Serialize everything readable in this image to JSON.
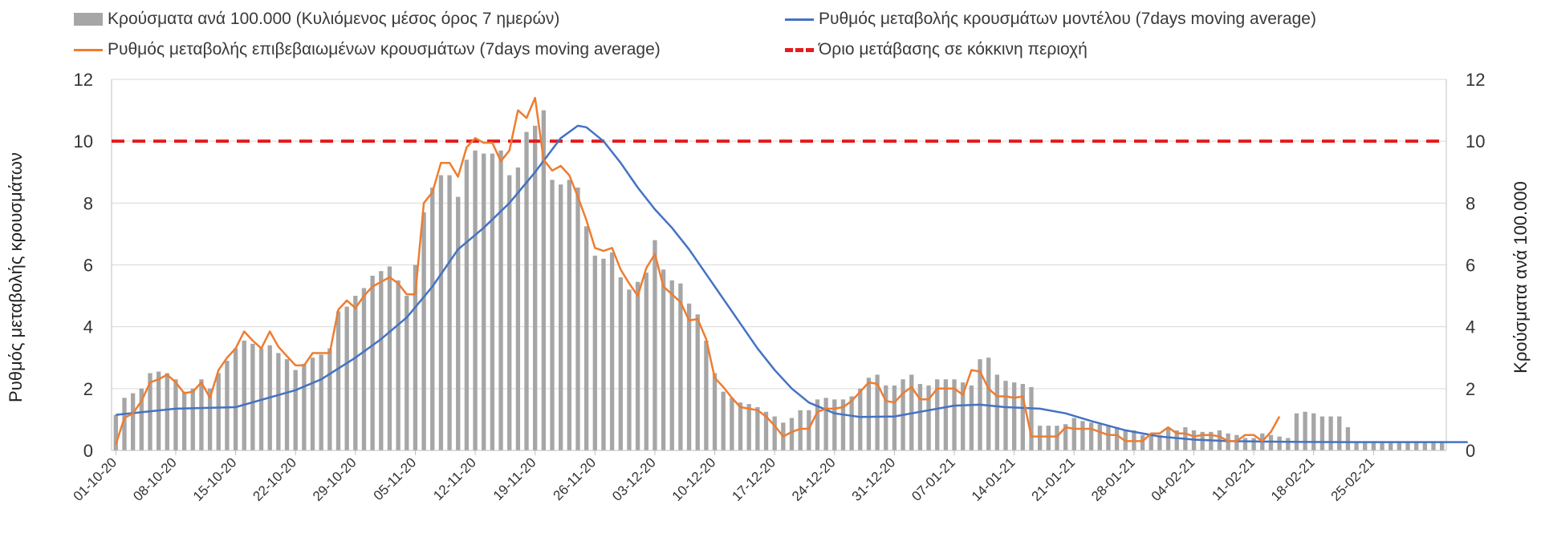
{
  "chart_data": {
    "type": "bar",
    "legend": {
      "bars": "Κρούσματα ανά 100.000 (Κυλιόμενος μέσος όρος 7 ημερών)",
      "model": "Ρυθμός μεταβολής κρουσμάτων μοντέλου (7days moving average)",
      "confirmed": "Ρυθμός μεταβολής επιβεβαιωμένων κρουσμάτων (7days moving average)",
      "threshold": "Όριο μετάβασης σε κόκκινη περιοχή"
    },
    "ylabel_left": "Ρυθμός μεταβολής κρουσμάτων",
    "ylabel_right": "Κρούσματα ανά 100.000",
    "ylim": [
      0,
      12
    ],
    "yticks": [
      "0",
      "2",
      "4",
      "6",
      "8",
      "10",
      "12"
    ],
    "threshold": 10,
    "xtick_labels": [
      "01-10-20",
      "08-10-20",
      "15-10-20",
      "22-10-20",
      "29-10-20",
      "05-11-20",
      "12-11-20",
      "19-11-20",
      "26-11-20",
      "03-12-20",
      "10-12-20",
      "17-12-20",
      "24-12-20",
      "31-12-20",
      "07-01-21",
      "14-01-21",
      "21-01-21",
      "28-01-21",
      "04-02-21",
      "11-02-21",
      "18-02-21",
      "25-02-21"
    ],
    "bars": [
      1.15,
      1.7,
      1.85,
      2.0,
      2.5,
      2.55,
      2.5,
      2.3,
      1.9,
      2.0,
      2.3,
      2.0,
      2.5,
      2.9,
      3.3,
      3.55,
      3.45,
      3.3,
      3.4,
      3.15,
      2.95,
      2.6,
      2.8,
      3.0,
      3.1,
      3.3,
      4.5,
      4.65,
      5.0,
      5.25,
      5.65,
      5.8,
      5.95,
      5.5,
      5.0,
      6.0,
      7.7,
      8.5,
      8.9,
      8.9,
      8.2,
      9.4,
      9.7,
      9.6,
      9.6,
      9.7,
      8.9,
      9.15,
      10.3,
      10.5,
      11.0,
      8.75,
      8.6,
      8.75,
      8.5,
      7.25,
      6.3,
      6.2,
      6.4,
      5.6,
      5.2,
      5.45,
      5.75,
      6.8,
      5.85,
      5.5,
      5.4,
      4.75,
      4.4,
      3.55,
      2.5,
      1.9,
      1.7,
      1.55,
      1.5,
      1.4,
      1.25,
      1.1,
      0.9,
      1.05,
      1.3,
      1.3,
      1.65,
      1.7,
      1.65,
      1.65,
      1.75,
      2.0,
      2.35,
      2.45,
      2.1,
      2.1,
      2.3,
      2.45,
      2.15,
      2.1,
      2.3,
      2.3,
      2.3,
      2.2,
      2.1,
      2.95,
      3.0,
      2.45,
      2.25,
      2.2,
      2.15,
      2.05,
      0.8,
      0.8,
      0.8,
      0.85,
      1.05,
      0.95,
      0.9,
      0.85,
      0.8,
      0.75,
      0.65,
      0.65,
      0.5,
      0.5,
      0.5,
      0.7,
      0.65,
      0.75,
      0.65,
      0.6,
      0.6,
      0.65,
      0.55,
      0.5,
      0.4,
      0.4,
      0.55,
      0.5,
      0.45,
      0.4,
      1.2,
      1.25,
      1.2,
      1.1,
      1.1,
      1.1,
      0.75,
      0.3,
      0.3,
      0.3,
      0.3,
      0.3,
      0.3,
      0.3,
      0.3,
      0.3,
      0.3,
      0.3
    ],
    "model_line": [
      [
        0,
        1.15
      ],
      [
        7,
        1.35
      ],
      [
        14,
        1.4
      ],
      [
        21,
        1.95
      ],
      [
        24,
        2.3
      ],
      [
        28,
        3.0
      ],
      [
        31,
        3.6
      ],
      [
        34,
        4.3
      ],
      [
        37,
        5.3
      ],
      [
        40,
        6.5
      ],
      [
        43,
        7.2
      ],
      [
        46,
        8.0
      ],
      [
        49,
        9.0
      ],
      [
        52,
        10.1
      ],
      [
        54,
        10.5
      ],
      [
        55,
        10.45
      ],
      [
        57,
        10.0
      ],
      [
        59,
        9.3
      ],
      [
        61,
        8.5
      ],
      [
        63,
        7.8
      ],
      [
        65,
        7.2
      ],
      [
        67,
        6.5
      ],
      [
        69,
        5.7
      ],
      [
        71,
        4.9
      ],
      [
        73,
        4.1
      ],
      [
        75,
        3.3
      ],
      [
        77,
        2.6
      ],
      [
        79,
        2.0
      ],
      [
        81,
        1.55
      ],
      [
        84,
        1.2
      ],
      [
        87,
        1.08
      ],
      [
        91,
        1.1
      ],
      [
        94,
        1.25
      ],
      [
        98,
        1.45
      ],
      [
        101,
        1.48
      ],
      [
        104,
        1.4
      ],
      [
        108,
        1.35
      ],
      [
        111,
        1.2
      ],
      [
        114,
        0.95
      ],
      [
        118,
        0.65
      ],
      [
        122,
        0.45
      ],
      [
        126,
        0.35
      ],
      [
        130,
        0.3
      ],
      [
        137,
        0.28
      ],
      [
        144,
        0.27
      ],
      [
        151,
        0.27
      ],
      [
        158,
        0.27
      ]
    ],
    "confirmed_line": [
      [
        0,
        0.2
      ],
      [
        1,
        1.05
      ],
      [
        2,
        1.2
      ],
      [
        3,
        1.6
      ],
      [
        4,
        2.2
      ],
      [
        5,
        2.3
      ],
      [
        6,
        2.45
      ],
      [
        7,
        2.2
      ],
      [
        8,
        1.85
      ],
      [
        9,
        1.9
      ],
      [
        10,
        2.2
      ],
      [
        11,
        1.7
      ],
      [
        12,
        2.6
      ],
      [
        13,
        3.0
      ],
      [
        14,
        3.3
      ],
      [
        15,
        3.85
      ],
      [
        16,
        3.55
      ],
      [
        17,
        3.3
      ],
      [
        18,
        3.85
      ],
      [
        19,
        3.35
      ],
      [
        20,
        3.05
      ],
      [
        21,
        2.75
      ],
      [
        22,
        2.75
      ],
      [
        23,
        3.15
      ],
      [
        24,
        3.15
      ],
      [
        25,
        3.15
      ],
      [
        26,
        4.55
      ],
      [
        27,
        4.85
      ],
      [
        28,
        4.6
      ],
      [
        29,
        5.0
      ],
      [
        30,
        5.3
      ],
      [
        31,
        5.45
      ],
      [
        32,
        5.6
      ],
      [
        33,
        5.4
      ],
      [
        34,
        5.05
      ],
      [
        35,
        5.05
      ],
      [
        36,
        8.0
      ],
      [
        37,
        8.35
      ],
      [
        38,
        9.3
      ],
      [
        39,
        9.3
      ],
      [
        40,
        8.85
      ],
      [
        41,
        9.8
      ],
      [
        42,
        10.1
      ],
      [
        43,
        9.95
      ],
      [
        44,
        9.95
      ],
      [
        45,
        9.35
      ],
      [
        46,
        9.7
      ],
      [
        47,
        11.0
      ],
      [
        48,
        10.75
      ],
      [
        49,
        11.4
      ],
      [
        50,
        9.4
      ],
      [
        51,
        9.05
      ],
      [
        52,
        9.2
      ],
      [
        53,
        8.9
      ],
      [
        54,
        8.2
      ],
      [
        55,
        7.45
      ],
      [
        56,
        6.55
      ],
      [
        57,
        6.45
      ],
      [
        58,
        6.55
      ],
      [
        59,
        5.85
      ],
      [
        60,
        5.4
      ],
      [
        61,
        5.0
      ],
      [
        62,
        5.9
      ],
      [
        63,
        6.35
      ],
      [
        64,
        5.3
      ],
      [
        65,
        5.05
      ],
      [
        66,
        4.8
      ],
      [
        67,
        4.2
      ],
      [
        68,
        4.25
      ],
      [
        69,
        3.6
      ],
      [
        70,
        2.35
      ],
      [
        71,
        2.05
      ],
      [
        72,
        1.7
      ],
      [
        73,
        1.4
      ],
      [
        74,
        1.35
      ],
      [
        75,
        1.3
      ],
      [
        76,
        1.1
      ],
      [
        77,
        0.8
      ],
      [
        78,
        0.45
      ],
      [
        79,
        0.6
      ],
      [
        80,
        0.7
      ],
      [
        81,
        0.7
      ],
      [
        82,
        1.25
      ],
      [
        83,
        1.35
      ],
      [
        84,
        1.35
      ],
      [
        85,
        1.4
      ],
      [
        86,
        1.6
      ],
      [
        87,
        1.9
      ],
      [
        88,
        2.2
      ],
      [
        89,
        2.15
      ],
      [
        90,
        1.6
      ],
      [
        91,
        1.55
      ],
      [
        92,
        1.85
      ],
      [
        93,
        2.05
      ],
      [
        94,
        1.65
      ],
      [
        95,
        1.65
      ],
      [
        96,
        2.0
      ],
      [
        97,
        2.0
      ],
      [
        98,
        2.0
      ],
      [
        99,
        1.8
      ],
      [
        100,
        2.6
      ],
      [
        101,
        2.55
      ],
      [
        102,
        2.0
      ],
      [
        103,
        1.75
      ],
      [
        104,
        1.75
      ],
      [
        105,
        1.7
      ],
      [
        106,
        1.75
      ],
      [
        107,
        0.45
      ],
      [
        108,
        0.45
      ],
      [
        109,
        0.45
      ],
      [
        110,
        0.45
      ],
      [
        111,
        0.75
      ],
      [
        112,
        0.7
      ],
      [
        113,
        0.7
      ],
      [
        114,
        0.7
      ],
      [
        115,
        0.6
      ],
      [
        116,
        0.5
      ],
      [
        117,
        0.5
      ],
      [
        118,
        0.3
      ],
      [
        119,
        0.3
      ],
      [
        120,
        0.3
      ],
      [
        121,
        0.55
      ],
      [
        122,
        0.55
      ],
      [
        123,
        0.75
      ],
      [
        124,
        0.55
      ],
      [
        125,
        0.55
      ],
      [
        126,
        0.45
      ],
      [
        127,
        0.5
      ],
      [
        128,
        0.5
      ],
      [
        129,
        0.45
      ],
      [
        130,
        0.3
      ],
      [
        131,
        0.3
      ],
      [
        132,
        0.5
      ],
      [
        133,
        0.5
      ],
      [
        134,
        0.3
      ],
      [
        135,
        0.6
      ],
      [
        136,
        1.1
      ]
    ]
  }
}
